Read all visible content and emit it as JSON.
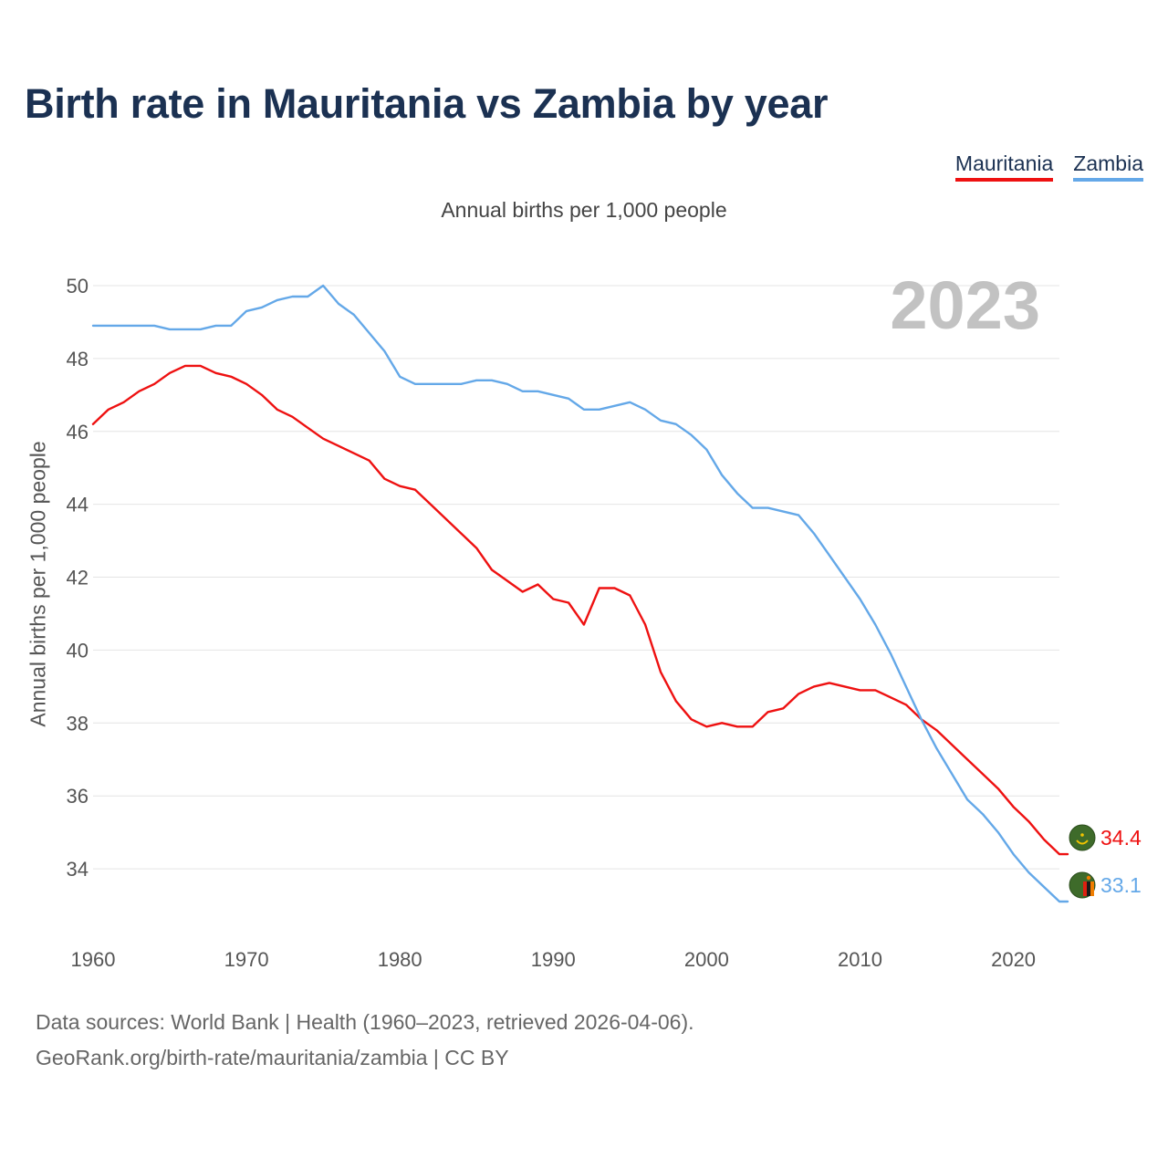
{
  "title": "Birth rate in Mauritania vs Zambia by year",
  "legend": [
    {
      "label": "Mauritania",
      "color": "#ee1111"
    },
    {
      "label": "Zambia",
      "color": "#64a8e8"
    }
  ],
  "year_watermark": "2023",
  "footer": {
    "line1": "Data sources: World Bank | Health (1960–2023, retrieved 2026-04-06).",
    "line2": "GeoRank.org/birth-rate/mauritania/zambia | CC BY"
  },
  "chart_data": {
    "type": "line",
    "title": "Birth rate in Mauritania vs Zambia by year",
    "subtitle": "Annual births per 1,000 people",
    "xlabel": "",
    "ylabel": "Annual births per 1,000 people",
    "xlim": [
      1960,
      2023
    ],
    "ylim": [
      32.5,
      50.5
    ],
    "x_ticks": [
      1960,
      1970,
      1980,
      1990,
      2000,
      2010,
      2020
    ],
    "y_ticks": [
      34,
      36,
      38,
      40,
      42,
      44,
      46,
      48,
      50
    ],
    "grid": true,
    "legend_position": "top-right",
    "x": [
      1960,
      1961,
      1962,
      1963,
      1964,
      1965,
      1966,
      1967,
      1968,
      1969,
      1970,
      1971,
      1972,
      1973,
      1974,
      1975,
      1976,
      1977,
      1978,
      1979,
      1980,
      1981,
      1982,
      1983,
      1984,
      1985,
      1986,
      1987,
      1988,
      1989,
      1990,
      1991,
      1992,
      1993,
      1994,
      1995,
      1996,
      1997,
      1998,
      1999,
      2000,
      2001,
      2002,
      2003,
      2004,
      2005,
      2006,
      2007,
      2008,
      2009,
      2010,
      2011,
      2012,
      2013,
      2014,
      2015,
      2016,
      2017,
      2018,
      2019,
      2020,
      2021,
      2022,
      2023
    ],
    "series": [
      {
        "name": "Mauritania",
        "color": "#ee1111",
        "end_label": "34.4",
        "values": [
          46.2,
          46.6,
          46.8,
          47.1,
          47.3,
          47.6,
          47.8,
          47.8,
          47.6,
          47.5,
          47.3,
          47.0,
          46.6,
          46.4,
          46.1,
          45.8,
          45.6,
          45.4,
          45.2,
          44.7,
          44.5,
          44.4,
          44.0,
          43.6,
          43.2,
          42.8,
          42.2,
          41.9,
          41.6,
          41.8,
          41.4,
          41.3,
          40.7,
          41.7,
          41.7,
          41.5,
          40.7,
          39.4,
          38.6,
          38.1,
          37.9,
          38.0,
          37.9,
          37.9,
          38.3,
          38.4,
          38.8,
          39.0,
          39.1,
          39.0,
          38.9,
          38.9,
          38.7,
          38.5,
          38.1,
          37.8,
          37.4,
          37.0,
          36.6,
          36.2,
          35.7,
          35.3,
          34.8,
          34.4
        ]
      },
      {
        "name": "Zambia",
        "color": "#64a8e8",
        "end_label": "33.1",
        "values": [
          48.9,
          48.9,
          48.9,
          48.9,
          48.9,
          48.8,
          48.8,
          48.8,
          48.9,
          48.9,
          49.3,
          49.4,
          49.6,
          49.7,
          49.7,
          50.0,
          49.5,
          49.2,
          48.7,
          48.2,
          47.5,
          47.3,
          47.3,
          47.3,
          47.3,
          47.4,
          47.4,
          47.3,
          47.1,
          47.1,
          47.0,
          46.9,
          46.6,
          46.6,
          46.7,
          46.8,
          46.6,
          46.3,
          46.2,
          45.9,
          45.5,
          44.8,
          44.3,
          43.9,
          43.9,
          43.8,
          43.7,
          43.2,
          42.6,
          42.0,
          41.4,
          40.7,
          39.9,
          39.0,
          38.1,
          37.3,
          36.6,
          35.9,
          35.5,
          35.0,
          34.4,
          33.9,
          33.5,
          33.1
        ]
      }
    ]
  }
}
